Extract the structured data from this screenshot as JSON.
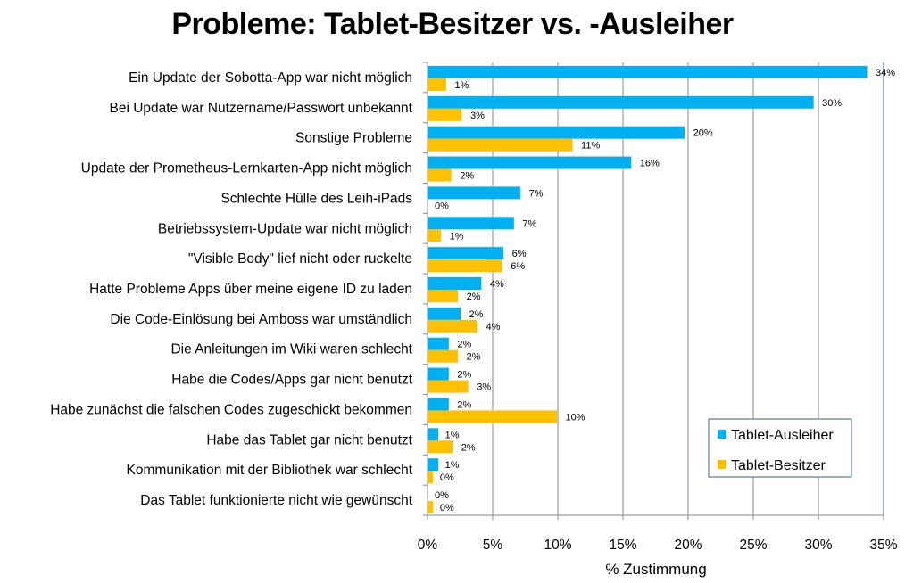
{
  "chart_data": {
    "type": "bar",
    "orientation": "horizontal",
    "title": "Probleme: Tablet-Besitzer vs. -Ausleiher",
    "xlabel": "% Zustimmung",
    "ylabel": "",
    "xlim": [
      0,
      35
    ],
    "x_ticks": [
      0,
      5,
      10,
      15,
      20,
      25,
      30,
      35
    ],
    "x_tick_labels": [
      "0%",
      "5%",
      "10%",
      "15%",
      "20%",
      "25%",
      "30%",
      "35%"
    ],
    "grid": true,
    "legend_position": "bottom-right",
    "categories": [
      "Ein Update der Sobotta-App war nicht möglich",
      "Bei Update war Nutzername/Passwort unbekannt",
      "Sonstige Probleme",
      "Update der Prometheus-Lernkarten-App nicht möglich",
      "Schlechte Hülle des Leih-iPads",
      "Betriebssystem-Update war nicht möglich",
      "\"Visible Body\" lief nicht oder ruckelte",
      "Hatte Probleme Apps über meine eigene ID zu laden",
      "Die Code-Einlösung bei Amboss war umständlich",
      "Die Anleitungen im Wiki waren schlecht",
      "Habe die Codes/Apps gar nicht benutzt",
      "Habe zunächst die falschen Codes zugeschickt bekommen",
      "Habe das Tablet gar nicht benutzt",
      "Kommunikation mit der Bibliothek war schlecht",
      "Das Tablet funktionierte nicht wie gewünscht"
    ],
    "series": [
      {
        "name": "Tablet-Ausleiher",
        "color": "#00b0f0",
        "values": [
          33.7,
          29.6,
          19.7,
          15.6,
          7.1,
          6.6,
          5.8,
          4.1,
          2.5,
          1.6,
          1.6,
          1.6,
          0.8,
          0.8,
          0
        ],
        "labels": [
          "34%",
          "30%",
          "20%",
          "16%",
          "7%",
          "7%",
          "6%",
          "4%",
          "2%",
          "2%",
          "2%",
          "2%",
          "1%",
          "1%",
          "0%"
        ]
      },
      {
        "name": "Tablet-Besitzer",
        "color": "#ffc000",
        "values": [
          1.4,
          2.6,
          11.1,
          1.8,
          0,
          1.0,
          5.7,
          2.3,
          3.8,
          2.3,
          3.1,
          9.9,
          1.9,
          0.4,
          0.4
        ],
        "labels": [
          "1%",
          "3%",
          "11%",
          "2%",
          "0%",
          "1%",
          "6%",
          "2%",
          "4%",
          "2%",
          "3%",
          "10%",
          "2%",
          "0%",
          "0%"
        ]
      }
    ]
  }
}
